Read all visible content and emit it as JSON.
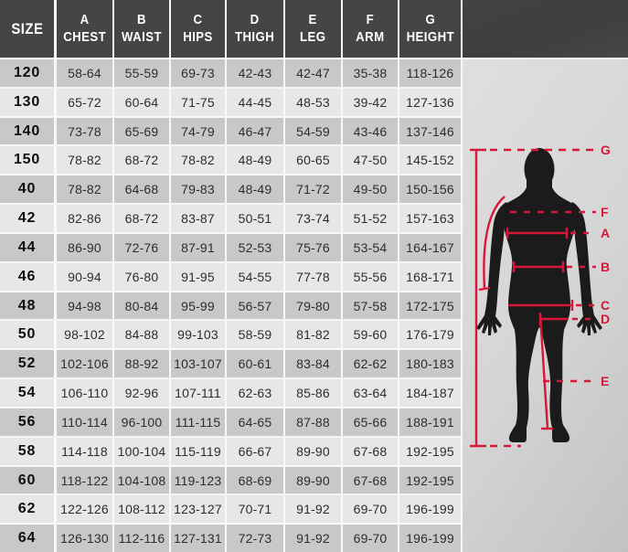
{
  "chart_data": {
    "type": "table",
    "columns": [
      {
        "letter": "",
        "label": "SIZE"
      },
      {
        "letter": "A",
        "label": "CHEST"
      },
      {
        "letter": "B",
        "label": "WAIST"
      },
      {
        "letter": "C",
        "label": "HIPS"
      },
      {
        "letter": "D",
        "label": "THIGH"
      },
      {
        "letter": "E",
        "label": "LEG"
      },
      {
        "letter": "F",
        "label": "ARM"
      },
      {
        "letter": "G",
        "label": "HEIGHT"
      }
    ],
    "rows": [
      {
        "size": "120",
        "values": [
          "58-64",
          "55-59",
          "69-73",
          "42-43",
          "42-47",
          "35-38",
          "118-126"
        ]
      },
      {
        "size": "130",
        "values": [
          "65-72",
          "60-64",
          "71-75",
          "44-45",
          "48-53",
          "39-42",
          "127-136"
        ]
      },
      {
        "size": "140",
        "values": [
          "73-78",
          "65-69",
          "74-79",
          "46-47",
          "54-59",
          "43-46",
          "137-146"
        ]
      },
      {
        "size": "150",
        "values": [
          "78-82",
          "68-72",
          "78-82",
          "48-49",
          "60-65",
          "47-50",
          "145-152"
        ]
      },
      {
        "size": "40",
        "values": [
          "78-82",
          "64-68",
          "79-83",
          "48-49",
          "71-72",
          "49-50",
          "150-156"
        ]
      },
      {
        "size": "42",
        "values": [
          "82-86",
          "68-72",
          "83-87",
          "50-51",
          "73-74",
          "51-52",
          "157-163"
        ]
      },
      {
        "size": "44",
        "values": [
          "86-90",
          "72-76",
          "87-91",
          "52-53",
          "75-76",
          "53-54",
          "164-167"
        ]
      },
      {
        "size": "46",
        "values": [
          "90-94",
          "76-80",
          "91-95",
          "54-55",
          "77-78",
          "55-56",
          "168-171"
        ]
      },
      {
        "size": "48",
        "values": [
          "94-98",
          "80-84",
          "95-99",
          "56-57",
          "79-80",
          "57-58",
          "172-175"
        ]
      },
      {
        "size": "50",
        "values": [
          "98-102",
          "84-88",
          "99-103",
          "58-59",
          "81-82",
          "59-60",
          "176-179"
        ]
      },
      {
        "size": "52",
        "values": [
          "102-106",
          "88-92",
          "103-107",
          "60-61",
          "83-84",
          "62-62",
          "180-183"
        ]
      },
      {
        "size": "54",
        "values": [
          "106-110",
          "92-96",
          "107-111",
          "62-63",
          "85-86",
          "63-64",
          "184-187"
        ]
      },
      {
        "size": "56",
        "values": [
          "110-114",
          "96-100",
          "111-115",
          "64-65",
          "87-88",
          "65-66",
          "188-191"
        ]
      },
      {
        "size": "58",
        "values": [
          "114-118",
          "100-104",
          "115-119",
          "66-67",
          "89-90",
          "67-68",
          "192-195"
        ]
      },
      {
        "size": "60",
        "values": [
          "118-122",
          "104-108",
          "119-123",
          "68-69",
          "89-90",
          "67-68",
          "192-195"
        ]
      },
      {
        "size": "62",
        "values": [
          "122-126",
          "108-112",
          "123-127",
          "70-71",
          "91-92",
          "69-70",
          "196-199"
        ]
      },
      {
        "size": "64",
        "values": [
          "126-130",
          "112-116",
          "127-131",
          "72-73",
          "91-92",
          "69-70",
          "196-199"
        ]
      }
    ],
    "figure_labels": [
      "G",
      "F",
      "A",
      "B",
      "C",
      "D",
      "E"
    ]
  },
  "colors": {
    "header_bg": "#454545",
    "header_text": "#ffffff",
    "row_dark": "#c8c8c8",
    "row_light": "#e7e7e7",
    "separator": "#fafafa",
    "accent_red": "#d6173a",
    "silhouette": "#1b1b1b",
    "panel_bg": "#d6d6d6"
  }
}
